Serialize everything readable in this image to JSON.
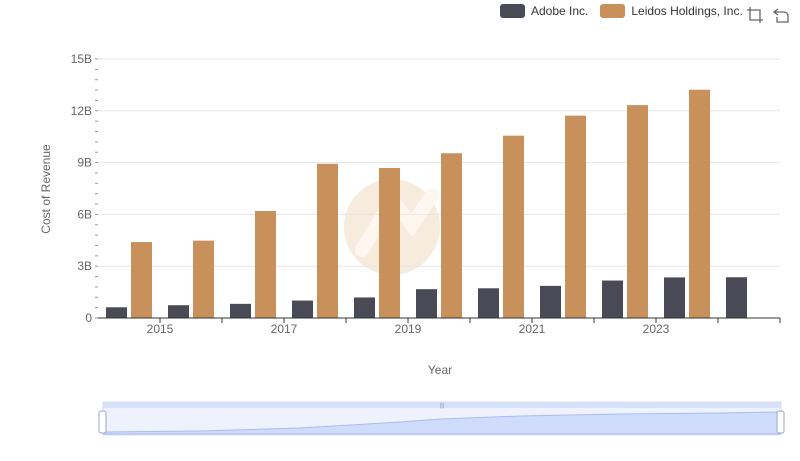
{
  "legend": [
    {
      "name": "Adobe Inc.",
      "color": "#4a4a56"
    },
    {
      "name": "Leidos Holdings, Inc.",
      "color": "#c8905a"
    }
  ],
  "toolbox": {
    "zoom_icon": "crop-zoom-icon",
    "reset_icon": "restore-icon"
  },
  "chart_data": {
    "type": "bar",
    "categories": [
      "2014",
      "2015",
      "2016",
      "2017",
      "2018",
      "2019",
      "2020",
      "2021",
      "2022",
      "2023",
      "2024"
    ],
    "x_tick_labels": [
      "2015",
      "2017",
      "2019",
      "2021",
      "2023"
    ],
    "xlabel": "Year",
    "ylabel": "Cost of Revenue",
    "ylim": [
      0,
      15000000000
    ],
    "y_ticks": [
      {
        "value": 0,
        "label": "0"
      },
      {
        "value": 3000000000,
        "label": "3B"
      },
      {
        "value": 6000000000,
        "label": "6B"
      },
      {
        "value": 9000000000,
        "label": "9B"
      },
      {
        "value": 12000000000,
        "label": "12B"
      },
      {
        "value": 15000000000,
        "label": "15B"
      }
    ],
    "grid": true,
    "legend_position": "top-right",
    "series": [
      {
        "name": "Adobe Inc.",
        "color": "#4a4a56",
        "values": [
          620000000,
          740000000,
          820000000,
          1010000000,
          1190000000,
          1670000000,
          1720000000,
          1860000000,
          2170000000,
          2350000000,
          2360000000
        ]
      },
      {
        "name": "Leidos Holdings, Inc.",
        "color": "#c8905a",
        "values": [
          4400000000,
          4480000000,
          6200000000,
          8930000000,
          8690000000,
          9540000000,
          10560000000,
          11720000000,
          12330000000,
          13220000000,
          null
        ]
      }
    ]
  }
}
